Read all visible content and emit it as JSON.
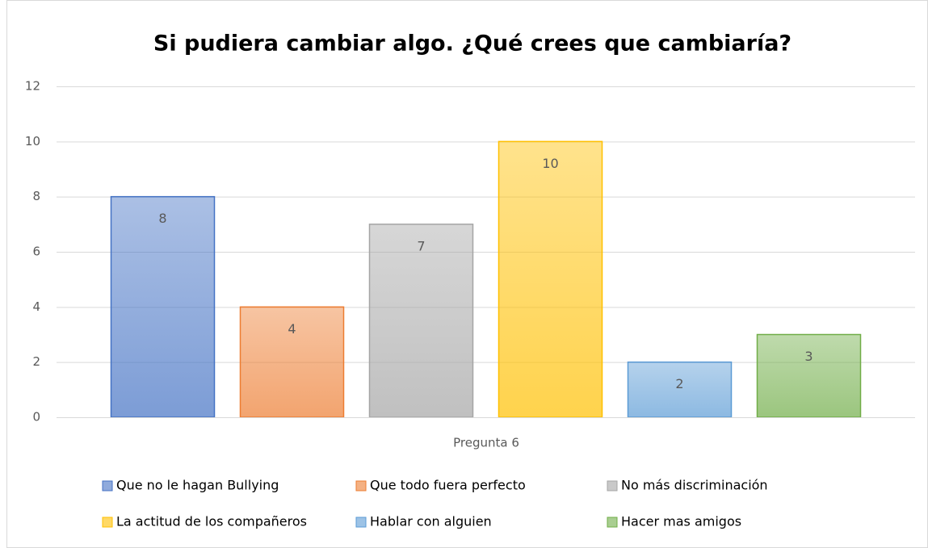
{
  "chart_data": {
    "type": "bar",
    "title": "Si pudiera cambiar algo. ¿Qué crees que cambiaría?",
    "x_label": "Pregunta 6",
    "categories": [
      "Pregunta 6"
    ],
    "series": [
      {
        "name": "Que no le hagan Bullying",
        "color": "#4472c4",
        "values": [
          8
        ]
      },
      {
        "name": "Que todo fuera perfecto",
        "color": "#ed7d31",
        "values": [
          4
        ]
      },
      {
        "name": "No más discriminación",
        "color": "#a5a5a5",
        "values": [
          7
        ]
      },
      {
        "name": "La actitud de los compañeros",
        "color": "#ffc000",
        "values": [
          10
        ]
      },
      {
        "name": "Hablar con alguien",
        "color": "#5b9bd5",
        "values": [
          2
        ]
      },
      {
        "name": "Hacer mas amigos",
        "color": "#70ad47",
        "values": [
          3
        ]
      }
    ],
    "ylim": [
      0,
      12
    ],
    "yticks": [
      0,
      2,
      4,
      6,
      8,
      10,
      12
    ],
    "grid": true,
    "legend": "bottom"
  }
}
